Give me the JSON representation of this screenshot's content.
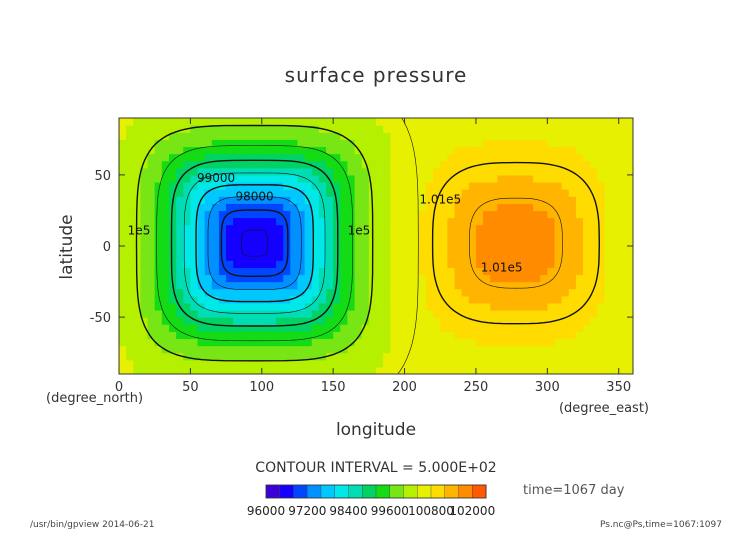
{
  "chart_data": {
    "type": "heatmap",
    "title": "surface pressure",
    "xlabel": "longitude",
    "ylabel": "latitude",
    "x_unit": "(degree_east)",
    "y_unit": "(degree_north)",
    "xlim": [
      0,
      360
    ],
    "ylim": [
      -90,
      90
    ],
    "x_ticks": [
      0,
      50,
      100,
      150,
      200,
      250,
      300,
      350
    ],
    "y_ticks": [
      -50,
      0,
      50
    ],
    "field": {
      "background": 100600,
      "features": [
        {
          "kind": "low",
          "lon": 95,
          "lat": 2,
          "center_value": 96400,
          "radius_lon": 75,
          "radius_lat": 75,
          "squareness": 4
        },
        {
          "kind": "high",
          "lon": 278,
          "lat": 2,
          "center_value": 101900,
          "radius_lon": 68,
          "radius_lat": 66,
          "squareness": 3
        }
      ]
    },
    "contour_interval": "CONTOUR INTERVAL = 5.000E+02",
    "contour_labels": [
      {
        "text": "99000",
        "lon": 68,
        "lat": 45
      },
      {
        "text": "98000",
        "lon": 95,
        "lat": 32
      },
      {
        "text": "1e5",
        "lon": 14,
        "lat": 8
      },
      {
        "text": "1e5",
        "lon": 168,
        "lat": 8
      },
      {
        "text": "1.01e5",
        "lon": 225,
        "lat": 30
      },
      {
        "text": "1.01e5",
        "lon": 268,
        "lat": -18
      }
    ],
    "colorbar": {
      "min": 96000,
      "max": 102400,
      "step": 400,
      "tick_labels": [
        "96000",
        "97200",
        "98400",
        "99600",
        "100800",
        "102000"
      ],
      "tick_values": [
        96000,
        97200,
        98400,
        99600,
        100800,
        102000
      ]
    },
    "time_label": "time=1067 day"
  },
  "footer": {
    "left": "/usr/bin/gpview  2014-06-21",
    "right": "Ps.nc@Ps,time=1067:1097"
  },
  "colors": {
    "frame": "#333333",
    "contour": "#111111",
    "text": "#222222"
  }
}
